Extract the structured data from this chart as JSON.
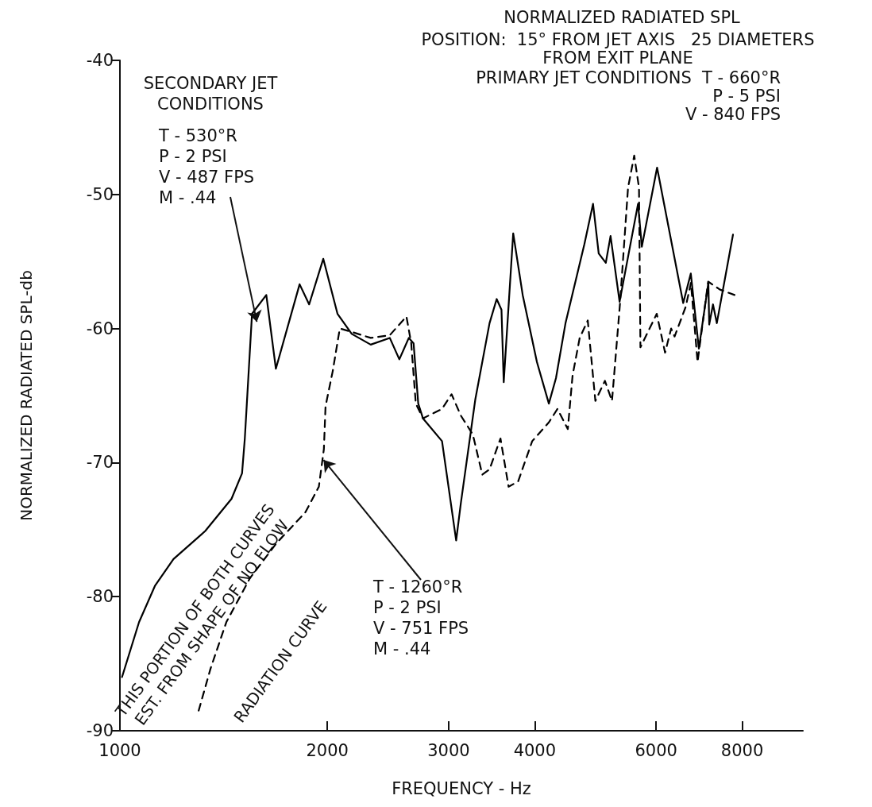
{
  "chart_data": {
    "type": "line",
    "title": "NORMALIZED RADIATED SPL",
    "xlabel": "FREQUENCY - Hz",
    "ylabel": "NORMALIZED RADIATED SPL-db",
    "log": "x",
    "xlim": [
      1000,
      9800
    ],
    "xticks": [
      1000,
      2000,
      3000,
      4000,
      6000,
      8000
    ],
    "ylim": [
      -90,
      -40
    ],
    "yticks": [
      -90,
      -80,
      -70,
      -60,
      -50,
      -40
    ],
    "grid": false,
    "marker": "none",
    "series": [
      {
        "color": "#000000",
        "line_style": "solid",
        "x": [
          1007,
          1066,
          1124,
          1196,
          1330,
          1452,
          1504,
          1518,
          1555,
          1631,
          1684,
          1823,
          1882,
          1973,
          2069,
          2170,
          2312,
          2464,
          2544,
          2626,
          2668,
          2710,
          2753,
          2934,
          3076,
          3125,
          3279,
          3439,
          3522,
          3579,
          3606,
          3722,
          3842,
          4029,
          4193,
          4294,
          4433,
          4722,
          4860,
          4953,
          5072,
          5153,
          5311,
          5649,
          5721,
          6020,
          6569,
          6738,
          6922,
          7145,
          7166,
          7257,
          7350,
          7758
        ],
        "values": [
          -86.0,
          -81.9,
          -79.2,
          -77.2,
          -75.1,
          -72.7,
          -70.8,
          -68.2,
          -58.9,
          -57.5,
          -63.0,
          -56.7,
          -58.2,
          -54.8,
          -58.9,
          -60.4,
          -61.2,
          -60.7,
          -62.3,
          -60.7,
          -61.1,
          -65.6,
          -66.7,
          -68.4,
          -75.8,
          -73.0,
          -65.3,
          -59.6,
          -57.8,
          -58.6,
          -64.0,
          -52.9,
          -57.5,
          -62.5,
          -65.6,
          -63.7,
          -59.6,
          -53.7,
          -50.7,
          -54.4,
          -55.1,
          -53.1,
          -58.0,
          -50.7,
          -53.9,
          -48.0,
          -58.1,
          -55.9,
          -61.5,
          -56.6,
          -59.7,
          -58.2,
          -59.6,
          -53.0
        ]
      },
      {
        "color": "#000000",
        "line_style": "dashed",
        "x": [
          1301,
          1353,
          1427,
          1545,
          1688,
          1859,
          1944,
          1977,
          1988,
          2036,
          2085,
          2153,
          2312,
          2464,
          2605,
          2647,
          2688,
          2753,
          2934,
          3029,
          3125,
          3252,
          3357,
          3439,
          3567,
          3665,
          3784,
          3966,
          4193,
          4315,
          4467,
          4539,
          4648,
          4775,
          4898,
          5057,
          5178,
          5317,
          5463,
          5577,
          5667,
          5694,
          6013,
          6183,
          6310,
          6383,
          6622,
          6741,
          6892,
          7140,
          7429,
          7798
        ],
        "values": [
          -88.5,
          -85.4,
          -81.9,
          -78.6,
          -76.0,
          -73.7,
          -71.8,
          -69.0,
          -65.8,
          -63.2,
          -60.0,
          -60.2,
          -60.7,
          -60.5,
          -59.1,
          -61.1,
          -65.6,
          -66.7,
          -66.0,
          -64.9,
          -66.5,
          -67.9,
          -70.9,
          -70.5,
          -68.2,
          -71.8,
          -71.4,
          -68.4,
          -67.0,
          -66.0,
          -67.5,
          -63.5,
          -60.7,
          -59.4,
          -65.4,
          -63.9,
          -65.4,
          -58.2,
          -49.5,
          -47.1,
          -49.5,
          -61.4,
          -58.9,
          -61.8,
          -60.0,
          -60.6,
          -58.4,
          -56.6,
          -62.5,
          -56.5,
          -57.1,
          -57.5
        ]
      }
    ],
    "annotations": [
      "SECONDARY JET\nCONDITIONS",
      {
        "text": "T - 530°R\nP - 2 PSI\nV - 487 FPS\nM - .44",
        "x": 1580,
        "y": -59.5
      },
      "POSITION:  15° FROM JET AXIS   25 DIAMETERS\nFROM EXIT PLANE",
      "PRIMARY JET CONDITIONS  T - 660°R\nP - 5 PSI\nV - 840 FPS",
      {
        "text": "T - 1260°R\nP - 2 PSI\nV - 751 FPS\nM - .44",
        "x": 1975,
        "y": -69.8
      },
      "THIS PORTION OF BOTH CURVES\nEST. FROM SHAPE OF NO FLOW",
      "RADIATION CURVE"
    ]
  }
}
